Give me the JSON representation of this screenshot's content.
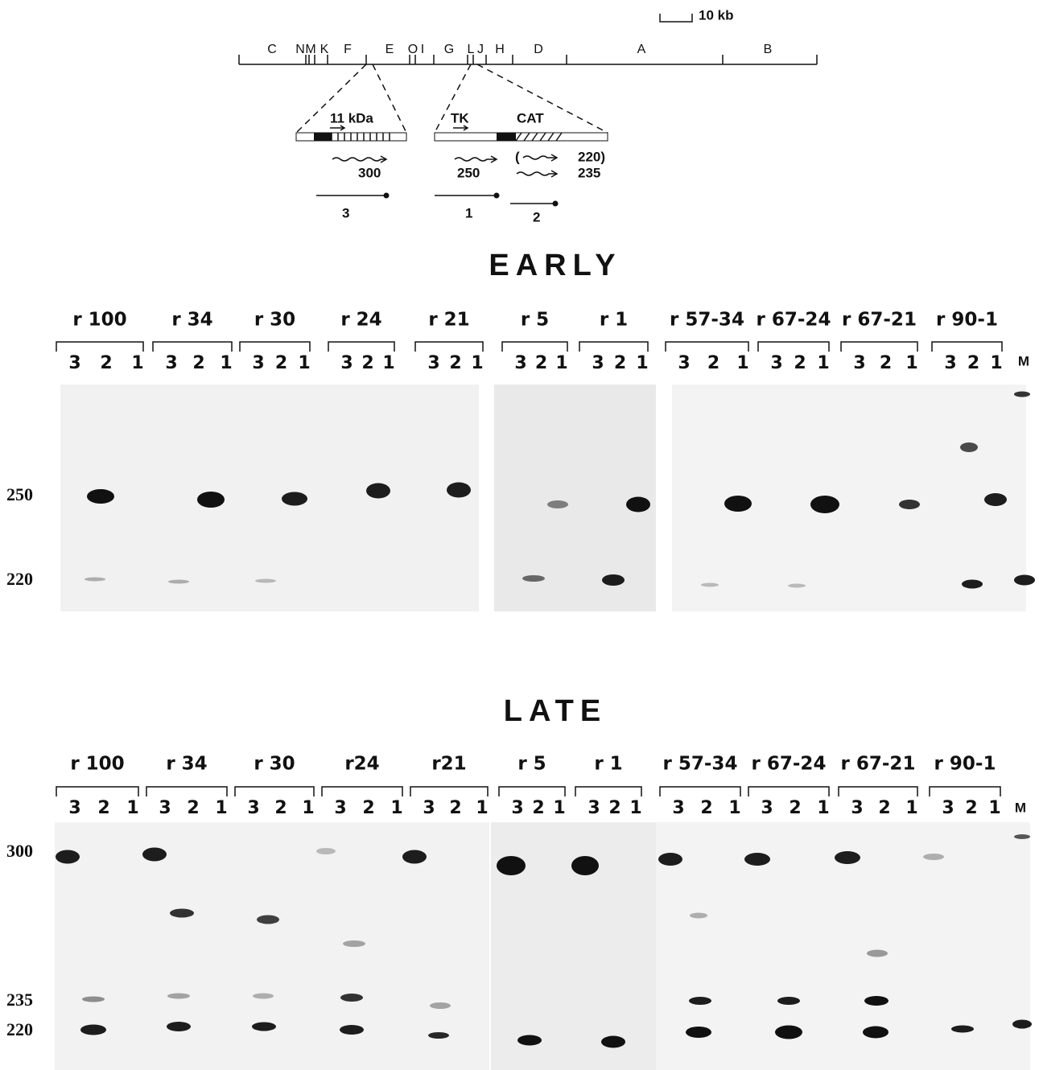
{
  "scale_label": "10 kb",
  "map": {
    "segments": [
      "C",
      "N",
      "M",
      "K",
      "F",
      "E",
      "O",
      "I",
      "G",
      "L",
      "J",
      "H",
      "D",
      "A",
      "B"
    ]
  },
  "inserts": {
    "left": {
      "gene": "11 kDa",
      "transcript": "300",
      "probe": "3"
    },
    "right": {
      "genes": [
        "TK",
        "CAT"
      ],
      "transcripts": [
        "250",
        "(",
        "220)",
        "235"
      ],
      "probes": [
        "1",
        "2"
      ]
    }
  },
  "panels": [
    {
      "title": "EARLY",
      "markers": [
        "250",
        "220"
      ],
      "marker_lane": "M",
      "groups": [
        {
          "name": "r 100",
          "lanes": [
            "3",
            "2",
            "1"
          ]
        },
        {
          "name": "r 34",
          "lanes": [
            "3",
            "2",
            "1"
          ]
        },
        {
          "name": "r 30",
          "lanes": [
            "3",
            "2",
            "1"
          ]
        },
        {
          "name": "r 24",
          "lanes": [
            "3",
            "2",
            "1"
          ]
        },
        {
          "name": "r 21",
          "lanes": [
            "3",
            "2",
            "1"
          ]
        },
        {
          "name": "r 5",
          "lanes": [
            "3",
            "2",
            "1"
          ]
        },
        {
          "name": "r 1",
          "lanes": [
            "3",
            "2",
            "1"
          ]
        },
        {
          "name": "r 57-34",
          "lanes": [
            "3",
            "2",
            "1"
          ]
        },
        {
          "name": "r 67-24",
          "lanes": [
            "3",
            "2",
            "1"
          ]
        },
        {
          "name": "r 67-21",
          "lanes": [
            "3",
            "2",
            "1"
          ]
        },
        {
          "name": "r 90-1",
          "lanes": [
            "3",
            "2",
            "1"
          ]
        }
      ]
    },
    {
      "title": "LATE",
      "markers": [
        "300",
        "235",
        "220"
      ],
      "marker_lane": "M",
      "groups": [
        {
          "name": "r 100",
          "lanes": [
            "3",
            "2",
            "1"
          ]
        },
        {
          "name": "r 34",
          "lanes": [
            "3",
            "2",
            "1"
          ]
        },
        {
          "name": "r 30",
          "lanes": [
            "3",
            "2",
            "1"
          ]
        },
        {
          "name": "r24",
          "lanes": [
            "3",
            "2",
            "1"
          ]
        },
        {
          "name": "r21",
          "lanes": [
            "3",
            "2",
            "1"
          ]
        },
        {
          "name": "r 5",
          "lanes": [
            "3",
            "2",
            "1"
          ]
        },
        {
          "name": "r 1",
          "lanes": [
            "3",
            "2",
            "1"
          ]
        },
        {
          "name": "r 57-34",
          "lanes": [
            "3",
            "2",
            "1"
          ]
        },
        {
          "name": "r 67-24",
          "lanes": [
            "3",
            "2",
            "1"
          ]
        },
        {
          "name": "r 67-21",
          "lanes": [
            "3",
            "2",
            "1"
          ]
        },
        {
          "name": "r 90-1",
          "lanes": [
            "3",
            "2",
            "1"
          ]
        }
      ]
    }
  ]
}
